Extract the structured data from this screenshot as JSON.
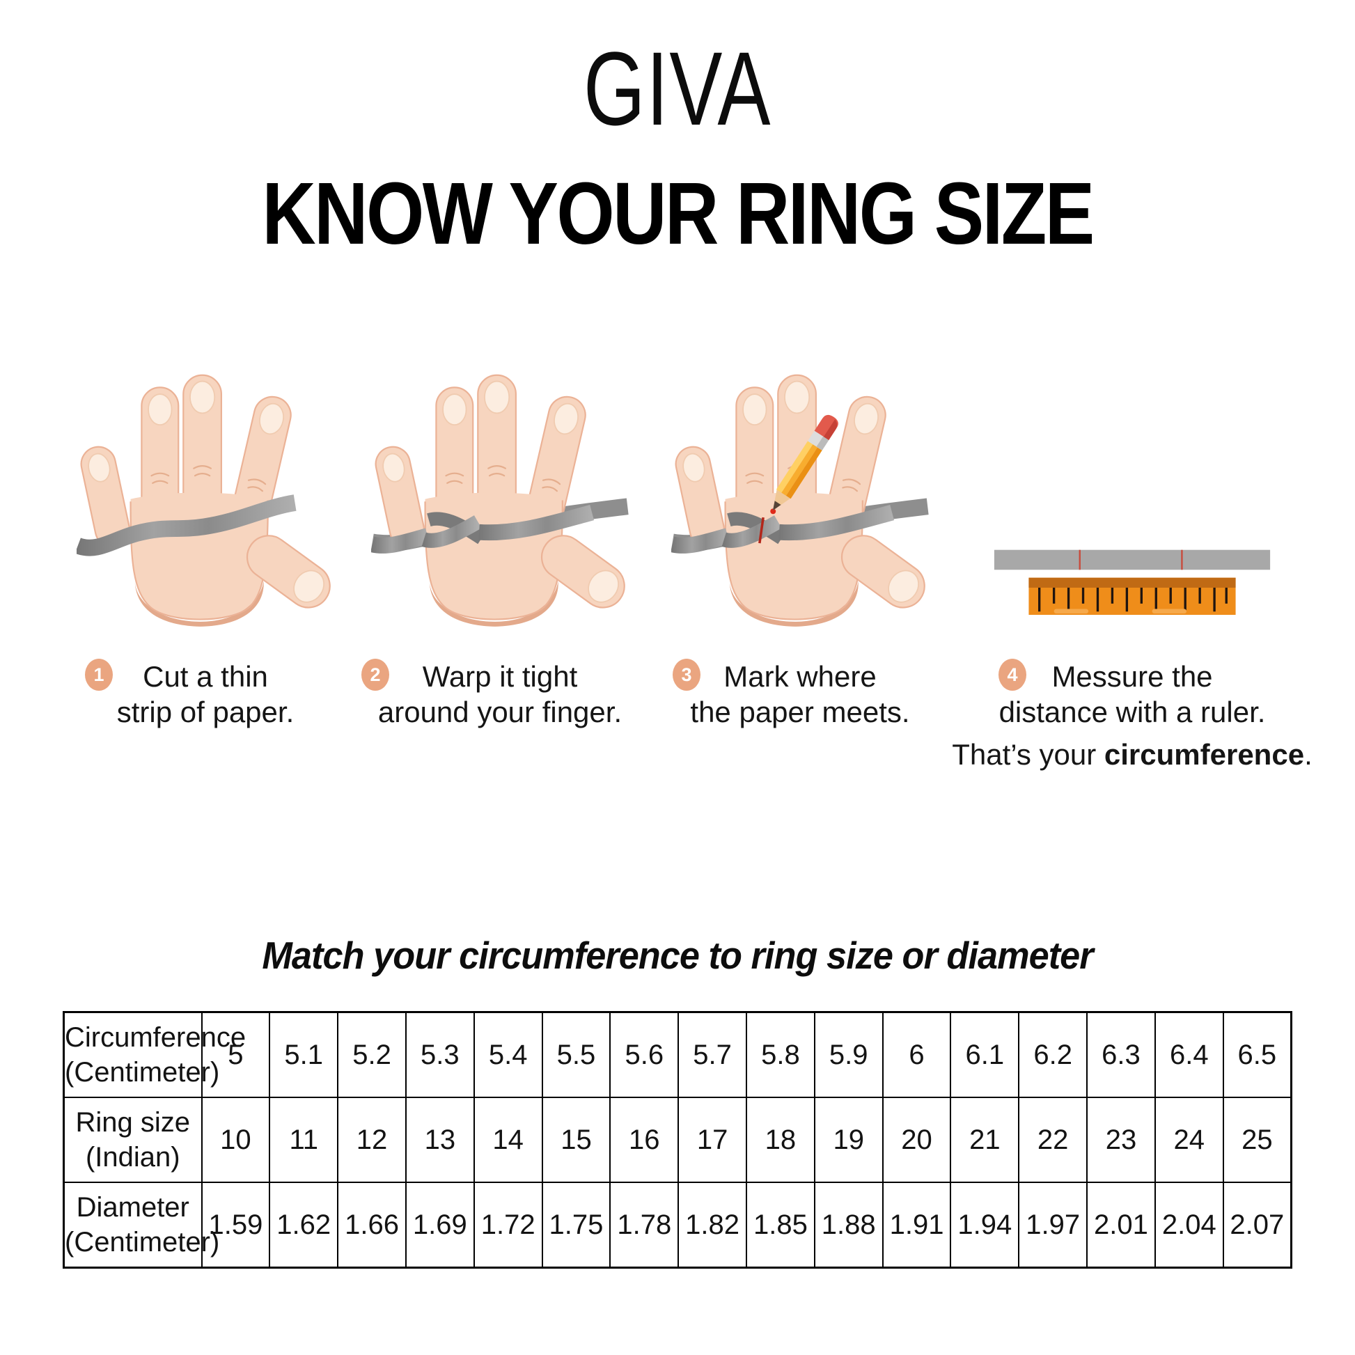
{
  "brand": {
    "name": "GIVA"
  },
  "page": {
    "title": "KNOW YOUR RING SIZE"
  },
  "steps": [
    {
      "num": "1",
      "line1": "Cut a thin",
      "line2": "strip of paper."
    },
    {
      "num": "2",
      "line1": "Warp it tight",
      "line2": "around your finger."
    },
    {
      "num": "3",
      "line1": "Mark where",
      "line2": "the paper meets."
    },
    {
      "num": "4",
      "line1": "Messure the",
      "line2": "distance with a ruler.",
      "line3_prefix": "That’s your ",
      "line3_bold": "circumference",
      "line3_suffix": "."
    }
  ],
  "match_section": {
    "heading": "Match your circumference to ring size or diameter",
    "table": {
      "rows": [
        {
          "label_line1": "Circumference",
          "label_line2": "(Centimeter)",
          "values": [
            "5",
            "5.1",
            "5.2",
            "5.3",
            "5.4",
            "5.5",
            "5.6",
            "5.7",
            "5.8",
            "5.9",
            "6",
            "6.1",
            "6.2",
            "6.3",
            "6.4",
            "6.5"
          ]
        },
        {
          "label_line1": "Ring size",
          "label_line2": "(Indian)",
          "values": [
            "10",
            "11",
            "12",
            "13",
            "14",
            "15",
            "16",
            "17",
            "18",
            "19",
            "20",
            "21",
            "22",
            "23",
            "24",
            "25"
          ]
        },
        {
          "label_line1": "Diameter",
          "label_line2": "(Centimeter)",
          "values": [
            "1.59",
            "1.62",
            "1.66",
            "1.69",
            "1.72",
            "1.75",
            "1.78",
            "1.82",
            "1.85",
            "1.88",
            "1.91",
            "1.94",
            "1.97",
            "2.01",
            "2.04",
            "2.07"
          ]
        }
      ]
    }
  },
  "colors": {
    "badge_peach": "#EAA580",
    "skin": "#F7D5BF",
    "skin_shadow": "#E3A98B",
    "paper_strip_gray": "#9A9A9A",
    "ruler_orange": "#EF8D1A",
    "ruler_band": "#C06A14",
    "mark_red": "#C0392B",
    "text": "#151515"
  }
}
